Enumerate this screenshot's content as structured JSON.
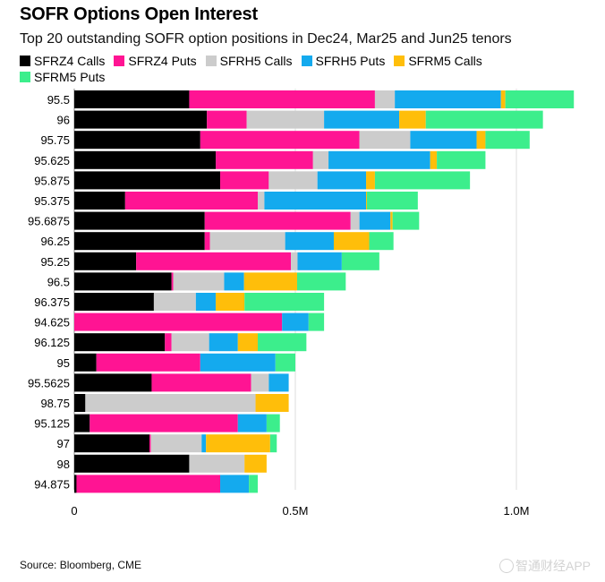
{
  "title": "SOFR Options Open Interest",
  "subtitle": "Top 20 outstanding SOFR option positions in Dec24, Mar25 and Jun25 tenors",
  "source": "Source: Bloomberg, CME",
  "watermark": "智通财经APP",
  "colors": {
    "SFRZ4 Calls": "#000000",
    "SFRZ4 Puts": "#ff1493",
    "SFRH5 Calls": "#cccccc",
    "SFRH5 Puts": "#14aaee",
    "SFRM5 Calls": "#ffbe0a",
    "SFRM5 Puts": "#3cee8c"
  },
  "chart_data": {
    "type": "bar",
    "orientation": "horizontal",
    "stacked": true,
    "title": "SOFR Options Open Interest",
    "xlabel": "",
    "ylabel": "",
    "xlim": [
      0,
      1.15
    ],
    "x_ticks": [
      {
        "value": 0,
        "label": "0"
      },
      {
        "value": 0.5,
        "label": "0.5M"
      },
      {
        "value": 1.0,
        "label": "1.0M"
      }
    ],
    "unit": "millions of contracts",
    "categories": [
      "95.5",
      "96",
      "95.75",
      "95.625",
      "95.875",
      "95.375",
      "95.6875",
      "96.25",
      "95.25",
      "96.5",
      "96.375",
      "94.625",
      "96.125",
      "95",
      "95.5625",
      "98.75",
      "95.125",
      "97",
      "98",
      "94.875"
    ],
    "series": [
      {
        "name": "SFRZ4 Calls",
        "values": [
          0.26,
          0.3,
          0.285,
          0.32,
          0.33,
          0.115,
          0.295,
          0.295,
          0.14,
          0.22,
          0.18,
          0.0,
          0.205,
          0.05,
          0.175,
          0.025,
          0.035,
          0.17,
          0.26,
          0.005
        ]
      },
      {
        "name": "SFRZ4 Puts",
        "values": [
          0.42,
          0.09,
          0.36,
          0.22,
          0.11,
          0.3,
          0.33,
          0.012,
          0.35,
          0.004,
          0.0,
          0.47,
          0.015,
          0.235,
          0.225,
          0.0,
          0.335,
          0.003,
          0.0,
          0.325
        ]
      },
      {
        "name": "SFRH5 Calls",
        "values": [
          0.045,
          0.175,
          0.115,
          0.035,
          0.11,
          0.015,
          0.02,
          0.17,
          0.015,
          0.115,
          0.095,
          0.0,
          0.085,
          0.0,
          0.04,
          0.385,
          0.0,
          0.115,
          0.125,
          0.0
        ]
      },
      {
        "name": "SFRH5 Puts",
        "values": [
          0.24,
          0.17,
          0.15,
          0.23,
          0.11,
          0.23,
          0.07,
          0.11,
          0.1,
          0.045,
          0.045,
          0.06,
          0.065,
          0.17,
          0.045,
          0.0,
          0.065,
          0.01,
          0.0,
          0.065
        ]
      },
      {
        "name": "SFRM5 Calls",
        "values": [
          0.01,
          0.06,
          0.02,
          0.015,
          0.02,
          0.002,
          0.005,
          0.08,
          0.0,
          0.12,
          0.065,
          0.0,
          0.045,
          0.0,
          0.0,
          0.075,
          0.0,
          0.145,
          0.05,
          0.0
        ]
      },
      {
        "name": "SFRM5 Puts",
        "values": [
          0.155,
          0.265,
          0.1,
          0.11,
          0.215,
          0.115,
          0.06,
          0.055,
          0.085,
          0.11,
          0.18,
          0.035,
          0.11,
          0.045,
          0.0,
          0.0,
          0.03,
          0.015,
          0.0,
          0.02
        ]
      }
    ]
  }
}
